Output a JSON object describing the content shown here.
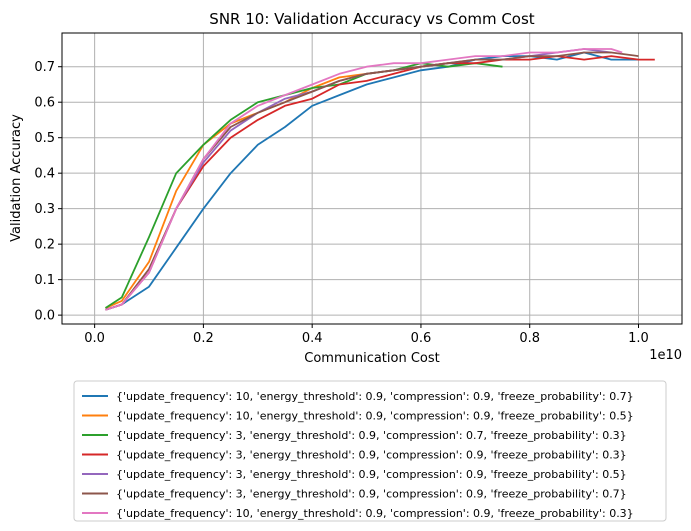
{
  "chart_data": {
    "type": "line",
    "title": "SNR 10: Validation Accuracy vs Comm Cost",
    "xlabel": "Communication Cost",
    "ylabel": "Validation Accuracy",
    "x_offset_label": "1e10",
    "xlim": [
      -0.06,
      1.08
    ],
    "ylim": [
      -0.025,
      0.795
    ],
    "x_scale": 10000000000.0,
    "xticks": [
      0.0,
      0.2,
      0.4,
      0.6,
      0.8,
      1.0
    ],
    "xtick_labels": [
      "0.0",
      "0.2",
      "0.4",
      "0.6",
      "0.8",
      "1.0"
    ],
    "yticks": [
      0.0,
      0.1,
      0.2,
      0.3,
      0.4,
      0.5,
      0.6,
      0.7
    ],
    "ytick_labels": [
      "0.0",
      "0.1",
      "0.2",
      "0.3",
      "0.4",
      "0.5",
      "0.6",
      "0.7"
    ],
    "grid": true,
    "legend_position": "below",
    "series": [
      {
        "name": "{'update_frequency': 10, 'energy_threshold': 0.9, 'compression': 0.9, 'freeze_probability': 0.7}",
        "color": "#1f77b4",
        "points": [
          [
            0.02,
            0.015
          ],
          [
            0.05,
            0.03
          ],
          [
            0.1,
            0.08
          ],
          [
            0.15,
            0.19
          ],
          [
            0.2,
            0.3
          ],
          [
            0.25,
            0.4
          ],
          [
            0.3,
            0.48
          ],
          [
            0.35,
            0.53
          ],
          [
            0.4,
            0.59
          ],
          [
            0.45,
            0.62
          ],
          [
            0.5,
            0.65
          ],
          [
            0.55,
            0.67
          ],
          [
            0.6,
            0.69
          ],
          [
            0.65,
            0.7
          ],
          [
            0.7,
            0.72
          ],
          [
            0.75,
            0.73
          ],
          [
            0.8,
            0.73
          ],
          [
            0.85,
            0.72
          ],
          [
            0.9,
            0.74
          ],
          [
            0.95,
            0.72
          ],
          [
            1.0,
            0.72
          ]
        ]
      },
      {
        "name": "{'update_frequency': 10, 'energy_threshold': 0.9, 'compression': 0.9, 'freeze_probability': 0.5}",
        "color": "#ff7f0e",
        "points": [
          [
            0.02,
            0.02
          ],
          [
            0.05,
            0.04
          ],
          [
            0.1,
            0.15
          ],
          [
            0.15,
            0.35
          ],
          [
            0.2,
            0.48
          ],
          [
            0.25,
            0.54
          ],
          [
            0.3,
            0.57
          ],
          [
            0.35,
            0.6
          ],
          [
            0.4,
            0.64
          ],
          [
            0.45,
            0.67
          ],
          [
            0.5,
            0.68
          ],
          [
            0.55,
            0.69
          ],
          [
            0.6,
            0.7
          ],
          [
            0.65,
            0.71
          ]
        ]
      },
      {
        "name": "{'update_frequency': 3, 'energy_threshold': 0.9, 'compression': 0.7, 'freeze_probability': 0.3}",
        "color": "#2ca02c",
        "points": [
          [
            0.02,
            0.02
          ],
          [
            0.05,
            0.05
          ],
          [
            0.1,
            0.22
          ],
          [
            0.15,
            0.4
          ],
          [
            0.2,
            0.48
          ],
          [
            0.25,
            0.55
          ],
          [
            0.3,
            0.6
          ],
          [
            0.35,
            0.62
          ],
          [
            0.4,
            0.64
          ],
          [
            0.45,
            0.65
          ],
          [
            0.5,
            0.68
          ],
          [
            0.55,
            0.69
          ],
          [
            0.6,
            0.71
          ],
          [
            0.65,
            0.7
          ],
          [
            0.7,
            0.71
          ],
          [
            0.75,
            0.7
          ]
        ]
      },
      {
        "name": "{'update_frequency': 3, 'energy_threshold': 0.9, 'compression': 0.9, 'freeze_probability': 0.3}",
        "color": "#d62728",
        "points": [
          [
            0.02,
            0.015
          ],
          [
            0.05,
            0.03
          ],
          [
            0.1,
            0.12
          ],
          [
            0.15,
            0.3
          ],
          [
            0.2,
            0.42
          ],
          [
            0.25,
            0.5
          ],
          [
            0.3,
            0.55
          ],
          [
            0.35,
            0.59
          ],
          [
            0.4,
            0.61
          ],
          [
            0.45,
            0.65
          ],
          [
            0.5,
            0.66
          ],
          [
            0.55,
            0.68
          ],
          [
            0.6,
            0.7
          ],
          [
            0.65,
            0.71
          ],
          [
            0.7,
            0.71
          ],
          [
            0.75,
            0.72
          ],
          [
            0.8,
            0.72
          ],
          [
            0.85,
            0.73
          ],
          [
            0.9,
            0.72
          ],
          [
            0.95,
            0.73
          ],
          [
            1.0,
            0.72
          ],
          [
            1.03,
            0.72
          ]
        ]
      },
      {
        "name": "{'update_frequency': 3, 'energy_threshold': 0.9, 'compression': 0.9, 'freeze_probability': 0.5}",
        "color": "#9467bd",
        "points": [
          [
            0.02,
            0.015
          ],
          [
            0.05,
            0.03
          ],
          [
            0.1,
            0.12
          ],
          [
            0.15,
            0.3
          ],
          [
            0.2,
            0.43
          ],
          [
            0.25,
            0.52
          ],
          [
            0.3,
            0.57
          ],
          [
            0.35,
            0.61
          ],
          [
            0.4,
            0.63
          ],
          [
            0.45,
            0.66
          ],
          [
            0.5,
            0.68
          ],
          [
            0.55,
            0.69
          ],
          [
            0.6,
            0.7
          ],
          [
            0.65,
            0.71
          ],
          [
            0.7,
            0.72
          ],
          [
            0.75,
            0.72
          ],
          [
            0.8,
            0.73
          ],
          [
            0.85,
            0.74
          ],
          [
            0.9,
            0.75
          ],
          [
            0.95,
            0.74
          ]
        ]
      },
      {
        "name": "{'update_frequency': 3, 'energy_threshold': 0.9, 'compression': 0.9, 'freeze_probability': 0.7}",
        "color": "#8c564b",
        "points": [
          [
            0.02,
            0.015
          ],
          [
            0.05,
            0.03
          ],
          [
            0.1,
            0.13
          ],
          [
            0.15,
            0.3
          ],
          [
            0.2,
            0.44
          ],
          [
            0.25,
            0.53
          ],
          [
            0.3,
            0.57
          ],
          [
            0.35,
            0.6
          ],
          [
            0.4,
            0.63
          ],
          [
            0.45,
            0.66
          ],
          [
            0.5,
            0.68
          ],
          [
            0.55,
            0.69
          ],
          [
            0.6,
            0.7
          ],
          [
            0.65,
            0.71
          ],
          [
            0.7,
            0.72
          ],
          [
            0.75,
            0.72
          ],
          [
            0.8,
            0.73
          ],
          [
            0.85,
            0.73
          ],
          [
            0.9,
            0.74
          ],
          [
            0.95,
            0.74
          ],
          [
            1.0,
            0.73
          ]
        ]
      },
      {
        "name": "{'update_frequency': 10, 'energy_threshold': 0.9, 'compression': 0.9, 'freeze_probability': 0.3}",
        "color": "#e377c2",
        "points": [
          [
            0.02,
            0.015
          ],
          [
            0.05,
            0.03
          ],
          [
            0.1,
            0.12
          ],
          [
            0.15,
            0.3
          ],
          [
            0.2,
            0.44
          ],
          [
            0.25,
            0.54
          ],
          [
            0.3,
            0.59
          ],
          [
            0.35,
            0.62
          ],
          [
            0.4,
            0.65
          ],
          [
            0.45,
            0.68
          ],
          [
            0.5,
            0.7
          ],
          [
            0.55,
            0.71
          ],
          [
            0.6,
            0.71
          ],
          [
            0.65,
            0.72
          ],
          [
            0.7,
            0.73
          ],
          [
            0.75,
            0.73
          ],
          [
            0.8,
            0.74
          ],
          [
            0.85,
            0.74
          ],
          [
            0.9,
            0.75
          ],
          [
            0.95,
            0.75
          ],
          [
            0.97,
            0.74
          ]
        ]
      }
    ]
  }
}
